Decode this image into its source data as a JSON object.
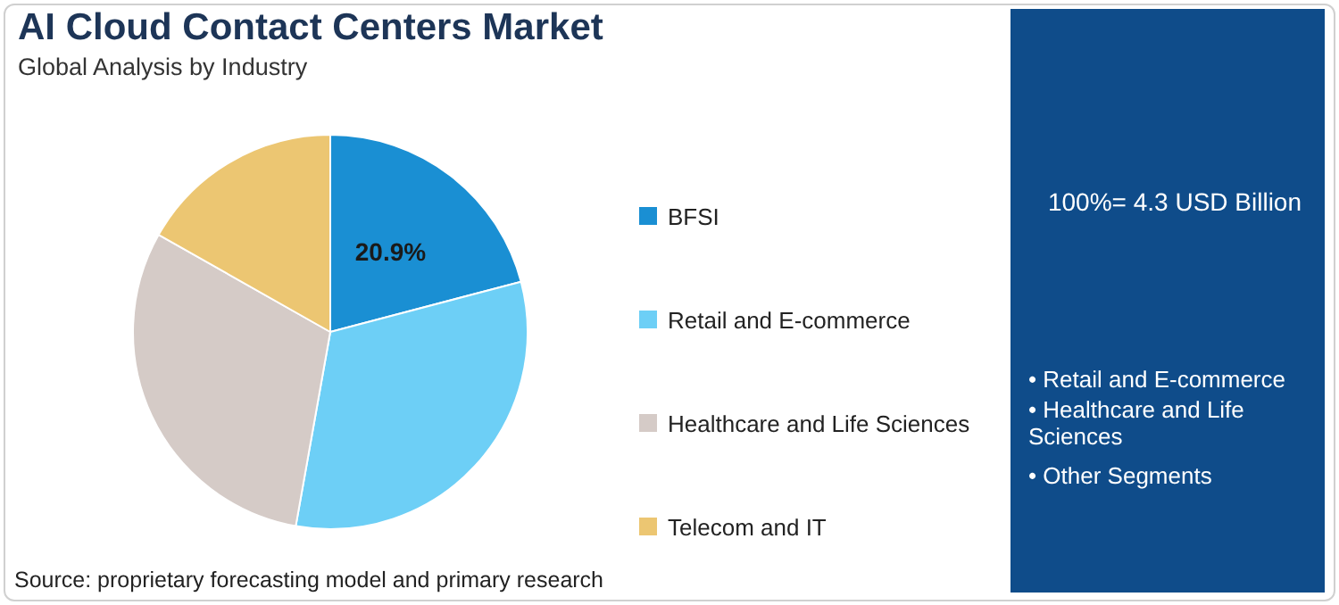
{
  "chart_data": {
    "type": "pie",
    "title": "AI Cloud Contact Centers Market",
    "subtitle": "Global Analysis by Industry",
    "categories": [
      "BFSI",
      "Retail and E-commerce",
      "Healthcare and Life Sciences",
      "Telecom and IT"
    ],
    "values": [
      20.9,
      31.9,
      30.4,
      16.8
    ],
    "colors": [
      "#1a8fd3",
      "#6dcff6",
      "#d5cbc7",
      "#ecc672"
    ],
    "value_labels": [
      "20.9%",
      null,
      null,
      null
    ],
    "legend": "right",
    "annotations": [
      "100%= 4.3 USD Billion",
      "• Retail and E-commerce",
      "• Healthcare and Life Sciences",
      "• Other Segments",
      "Source: proprietary forecasting model and primary research"
    ]
  }
}
